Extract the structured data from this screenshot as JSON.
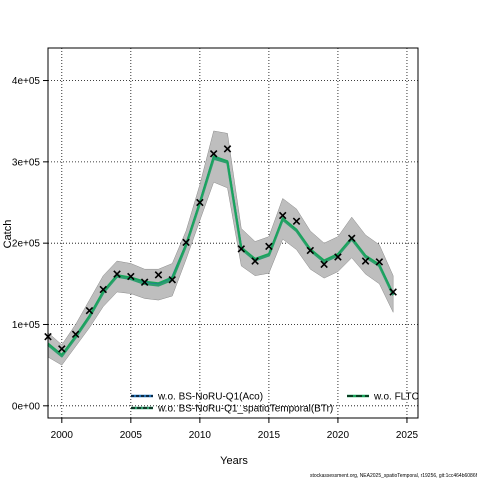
{
  "chart_data": {
    "type": "line",
    "xlabel": "Years",
    "ylabel": "Catch",
    "xlim": [
      1999,
      2025.8
    ],
    "ylim": [
      -15000,
      440000
    ],
    "x_ticks": [
      2000,
      2005,
      2010,
      2015,
      2020,
      2025
    ],
    "x_tick_labels": [
      "2000",
      "2005",
      "2010",
      "2015",
      "2020",
      "2025"
    ],
    "y_ticks": [
      0,
      100000,
      200000,
      300000,
      400000
    ],
    "y_tick_labels": [
      "0e+00",
      "1e+05",
      "2e+05",
      "3e+05",
      "4e+05"
    ],
    "grid": true,
    "legend_position": "bottom",
    "colors": {
      "band": "#bebebe",
      "band_edge": "#8a8a8a",
      "series_aco": "#1f6fb5",
      "series_btr": "#2e9e6e",
      "series_fltc": "#18a55a",
      "observed": "#000000"
    },
    "years": [
      1999,
      2000,
      2001,
      2002,
      2003,
      2004,
      2005,
      2006,
      2007,
      2008,
      2009,
      2010,
      2011,
      2012,
      2013,
      2014,
      2015,
      2016,
      2017,
      2018,
      2019,
      2020,
      2021,
      2022,
      2023,
      2024
    ],
    "band_upper": [
      90000,
      75000,
      100000,
      130000,
      160000,
      178000,
      175000,
      168000,
      168000,
      175000,
      215000,
      272000,
      338000,
      335000,
      218000,
      202000,
      208000,
      255000,
      242000,
      215000,
      200000,
      208000,
      232000,
      210000,
      198000,
      160000
    ],
    "band_lower": [
      60000,
      50000,
      73000,
      96000,
      122000,
      140000,
      138000,
      132000,
      130000,
      135000,
      180000,
      228000,
      275000,
      268000,
      172000,
      160000,
      163000,
      205000,
      192000,
      168000,
      157000,
      165000,
      182000,
      162000,
      150000,
      115000
    ],
    "series": [
      {
        "name": "w.o. BS-NoRU-Q1(Aco)",
        "values": [
          76000,
          62000,
          85000,
          110000,
          140000,
          160000,
          157000,
          152000,
          150000,
          158000,
          198000,
          250000,
          306000,
          300000,
          194000,
          180000,
          186000,
          230000,
          216000,
          192000,
          178000,
          186000,
          206000,
          184000,
          173000,
          137000
        ]
      },
      {
        "name": "w.o. BS-NoRu-Q1_spatioTemporal(BTr)",
        "values": [
          75000,
          61000,
          84000,
          109000,
          139000,
          159000,
          156000,
          150000,
          148000,
          155000,
          197000,
          249000,
          304000,
          299000,
          193000,
          179000,
          185000,
          229000,
          215000,
          191000,
          177000,
          185000,
          205000,
          183000,
          172000,
          136000
        ]
      },
      {
        "name": "w.o. FLTC",
        "values": [
          77000,
          63000,
          86000,
          111000,
          141000,
          161000,
          158000,
          153000,
          151000,
          158000,
          199000,
          251000,
          307000,
          301000,
          195000,
          181000,
          187000,
          231000,
          217000,
          193000,
          179000,
          187000,
          207000,
          185000,
          174000,
          138000
        ]
      }
    ],
    "observed": {
      "x": [
        1999,
        2000,
        2001,
        2002,
        2003,
        2004,
        2005,
        2006,
        2007,
        2008,
        2009,
        2010,
        2011,
        2012,
        2013,
        2014,
        2015,
        2016,
        2017,
        2018,
        2019,
        2020,
        2021,
        2022,
        2023,
        2024
      ],
      "y": [
        85000,
        70000,
        88000,
        117000,
        143000,
        162000,
        159000,
        152000,
        161000,
        155000,
        201000,
        250000,
        310000,
        316000,
        193000,
        178000,
        196000,
        234000,
        227000,
        191000,
        174000,
        183000,
        206000,
        178000,
        177000,
        140000
      ]
    },
    "footer": "stockassessment.org, NEA2025_spatioTemporal, r19256, git:1cc464b6086f"
  }
}
